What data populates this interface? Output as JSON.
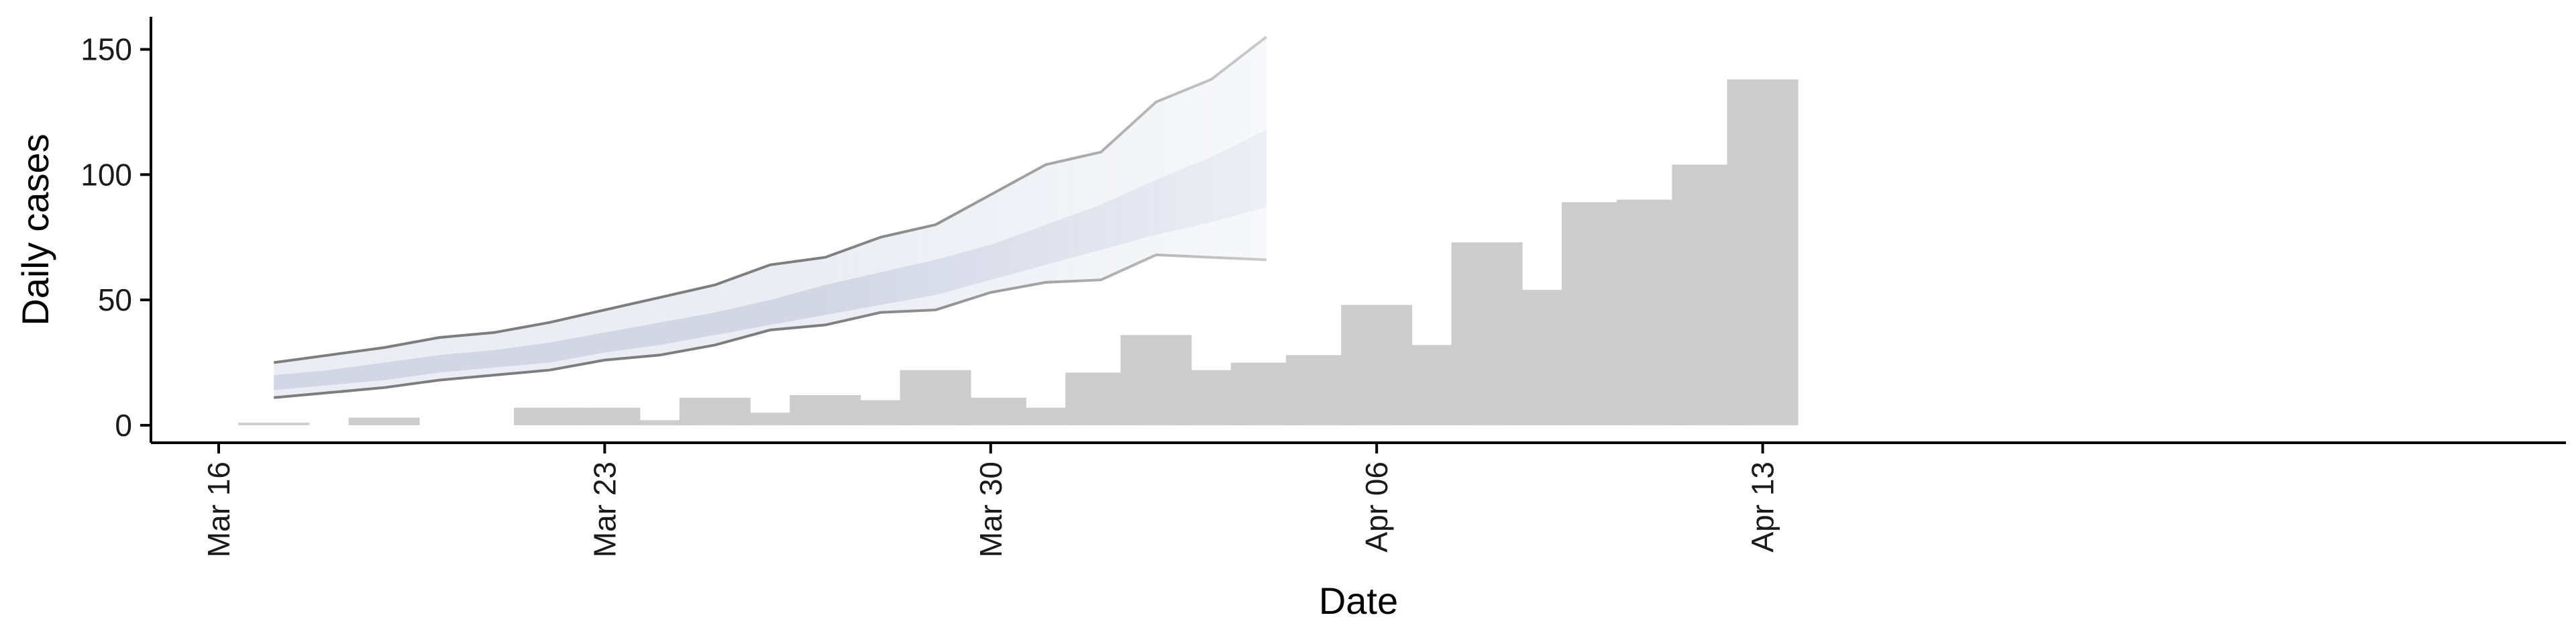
{
  "chart_data": {
    "type": "bar",
    "xlabel": "Date",
    "ylabel": "Daily cases",
    "x_axis": {
      "ticks": [
        "2020-03-16",
        "2020-03-23",
        "2020-03-30",
        "2020-04-06",
        "2020-04-13"
      ],
      "tick_labels": [
        "Mar 16",
        "Mar 23",
        "Mar 30",
        "Apr 06",
        "Apr 13"
      ],
      "range": [
        "2020-03-16",
        "2020-04-15"
      ]
    },
    "y_axis": {
      "ticks": [
        0,
        50,
        100,
        150
      ],
      "tick_labels": [
        "0",
        "50",
        "100",
        "150"
      ],
      "range": [
        -7,
        163
      ]
    },
    "grid": false,
    "bars": {
      "color": "#cccccc",
      "dates": [
        "2020-03-17",
        "2020-03-18",
        "2020-03-19",
        "2020-03-20",
        "2020-03-21",
        "2020-03-22",
        "2020-03-23",
        "2020-03-24",
        "2020-03-25",
        "2020-03-26",
        "2020-03-27",
        "2020-03-28",
        "2020-03-29",
        "2020-03-30",
        "2020-03-31",
        "2020-04-01",
        "2020-04-02",
        "2020-04-03",
        "2020-04-04",
        "2020-04-05",
        "2020-04-06",
        "2020-04-07",
        "2020-04-08",
        "2020-04-09",
        "2020-04-10",
        "2020-04-11",
        "2020-04-12",
        "2020-04-13"
      ],
      "values": [
        1,
        0,
        3,
        0,
        0,
        7,
        7,
        2,
        11,
        5,
        12,
        10,
        22,
        11,
        7,
        21,
        36,
        22,
        25,
        28,
        48,
        32,
        73,
        54,
        89,
        90,
        104,
        138
      ]
    },
    "forecast": {
      "dates": [
        "2020-03-17",
        "2020-03-18",
        "2020-03-19",
        "2020-03-20",
        "2020-03-21",
        "2020-03-22",
        "2020-03-23",
        "2020-03-24",
        "2020-03-25",
        "2020-03-26",
        "2020-03-27",
        "2020-03-28",
        "2020-03-29",
        "2020-03-30",
        "2020-03-31",
        "2020-04-01",
        "2020-04-02",
        "2020-04-03",
        "2020-04-04"
      ],
      "outer_upper": [
        25,
        28,
        31,
        35,
        37,
        41,
        46,
        51,
        56,
        64,
        67,
        75,
        80,
        92,
        104,
        109,
        129,
        138,
        155
      ],
      "outer_lower": [
        11,
        13,
        15,
        18,
        20,
        22,
        26,
        28,
        32,
        38,
        40,
        45,
        46,
        53,
        57,
        58,
        68,
        67,
        66
      ],
      "inner_upper": [
        20,
        22,
        25,
        28,
        30,
        33,
        37,
        41,
        45,
        50,
        56,
        61,
        66,
        72,
        80,
        88,
        98,
        107,
        118
      ],
      "inner_lower": [
        14,
        16,
        18,
        21,
        23,
        25,
        29,
        32,
        36,
        40,
        44,
        48,
        52,
        58,
        64,
        70,
        76,
        81,
        87
      ],
      "band_outer_color": "#e4e6ef",
      "band_inner_color": "#c9cfe0",
      "line_color": "#7d7d7d"
    }
  }
}
